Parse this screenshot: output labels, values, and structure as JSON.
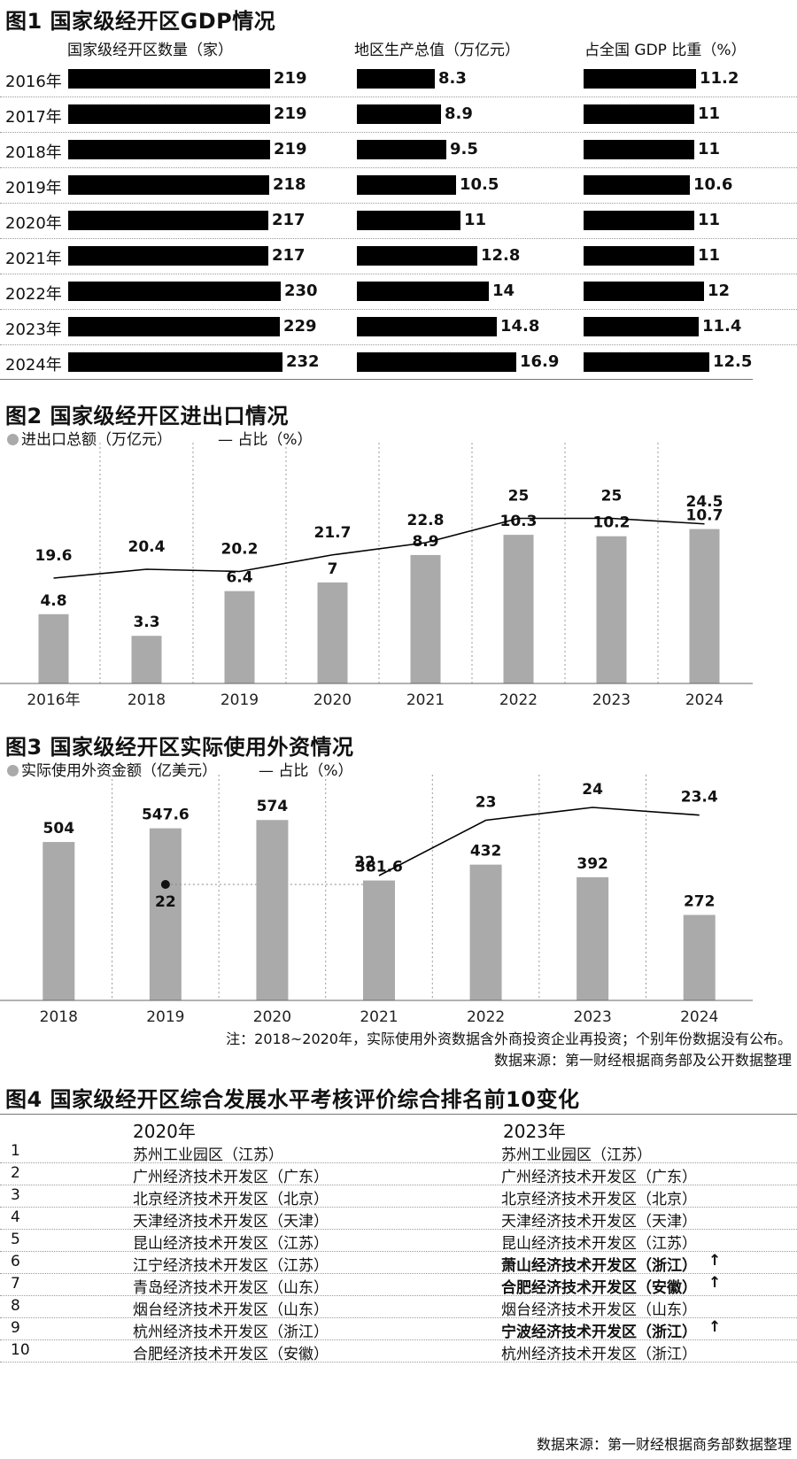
{
  "figures": {
    "fig1_title": "图1 国家级经开区GDP情况",
    "fig2_title": "图2 国家级经开区进出口情况",
    "fig3_title": "图3 国家级经开区实际使用外资情况",
    "fig4_title": "图4 国家级经开区综合发展水平考核评价综合排名前10变化"
  },
  "chart_data": [
    {
      "type": "bar",
      "orientation": "horizontal",
      "categories": [
        "2016年",
        "2017年",
        "2018年",
        "2019年",
        "2020年",
        "2021年",
        "2022年",
        "2023年",
        "2024年"
      ],
      "series": [
        {
          "name": "国家级经开区数量（家）",
          "values": [
            219,
            219,
            219,
            218,
            217,
            217,
            230,
            229,
            232
          ],
          "value_labels": [
            "219",
            "219",
            "219",
            "218",
            "217",
            "217",
            "230",
            "229",
            "232"
          ],
          "color": "#000000"
        },
        {
          "name": "地区生产总值（万亿元）",
          "values": [
            8.3,
            8.9,
            9.5,
            10.5,
            11,
            12.8,
            14,
            14.8,
            16.9
          ],
          "value_labels": [
            "8.3",
            "8.9",
            "9.5",
            "10.5",
            "11",
            "12.8",
            "14",
            "14.8",
            "16.9"
          ],
          "color": "#000000"
        },
        {
          "name": "占全国 GDP 比重（%）",
          "values": [
            11.2,
            11,
            11,
            10.6,
            11,
            11,
            12,
            11.4,
            12.5
          ],
          "value_labels": [
            "11.2",
            "11",
            "11",
            "10.6",
            "11",
            "11",
            "12",
            "11.4",
            "12.5"
          ],
          "color": "#000000"
        }
      ]
    },
    {
      "type": "bar",
      "categories": [
        "2016年",
        "2018",
        "2019",
        "2020",
        "2021",
        "2022",
        "2023",
        "2024"
      ],
      "series": [
        {
          "name": "进出口总额（万亿元）",
          "kind": "bar",
          "values": [
            4.8,
            3.3,
            6.4,
            7,
            8.9,
            10.3,
            10.2,
            10.7
          ],
          "value_labels": [
            "4.8",
            "3.3",
            "6.4",
            "7",
            "8.9",
            "10.3",
            "10.2",
            "10.7"
          ],
          "color": "#aaaaaa"
        },
        {
          "name": "占比（%）",
          "kind": "line",
          "values": [
            19.6,
            20.4,
            20.2,
            21.7,
            22.8,
            25,
            25,
            24.5
          ],
          "value_labels": [
            "19.6",
            "20.4",
            "20.2",
            "21.7",
            "22.8",
            "25",
            "25",
            "24.5"
          ],
          "color": "#000000"
        }
      ],
      "legend_placement": "top-left",
      "grid": "vertical dotted"
    },
    {
      "type": "bar",
      "categories": [
        "2018",
        "2019",
        "2020",
        "2021",
        "2022",
        "2023",
        "2024"
      ],
      "series": [
        {
          "name": "实际使用外资金额（亿美元）",
          "kind": "bar",
          "values": [
            504,
            547.6,
            574,
            381.6,
            432,
            392,
            272
          ],
          "value_labels": [
            "504",
            "547.6",
            "574",
            "381.6",
            "432",
            "392",
            "272"
          ],
          "color": "#aaaaaa"
        },
        {
          "name": "占比（%）",
          "kind": "line",
          "values": [
            null,
            22,
            null,
            22,
            23,
            24,
            23.4
          ],
          "value_labels": [
            "",
            "22",
            "",
            "22",
            "23",
            "24",
            "23.4"
          ],
          "color": "#000000"
        }
      ],
      "legend_placement": "top-left",
      "grid": "vertical dotted"
    },
    {
      "type": "table",
      "columns": [
        "",
        "2020年",
        "2023年"
      ],
      "rows": [
        {
          "rank": "1",
          "y2020": "苏州工业园区（江苏）",
          "y2023": "苏州工业园区（江苏）",
          "rise": false
        },
        {
          "rank": "2",
          "y2020": "广州经济技术开发区（广东）",
          "y2023": "广州经济技术开发区（广东）",
          "rise": false
        },
        {
          "rank": "3",
          "y2020": "北京经济技术开发区（北京）",
          "y2023": "北京经济技术开发区（北京）",
          "rise": false
        },
        {
          "rank": "4",
          "y2020": "天津经济技术开发区（天津）",
          "y2023": "天津经济技术开发区（天津）",
          "rise": false
        },
        {
          "rank": "5",
          "y2020": "昆山经济技术开发区（江苏）",
          "y2023": "昆山经济技术开发区（江苏）",
          "rise": false
        },
        {
          "rank": "6",
          "y2020": "江宁经济技术开发区（江苏）",
          "y2023": "萧山经济技术开发区（浙江）",
          "rise": true
        },
        {
          "rank": "7",
          "y2020": "青岛经济技术开发区（山东）",
          "y2023": "合肥经济技术开发区（安徽）",
          "rise": true
        },
        {
          "rank": "8",
          "y2020": "烟台经济技术开发区（山东）",
          "y2023": "烟台经济技术开发区（山东）",
          "rise": false
        },
        {
          "rank": "9",
          "y2020": "杭州经济技术开发区（浙江）",
          "y2023": "宁波经济技术开发区（浙江）",
          "rise": true
        },
        {
          "rank": "10",
          "y2020": "合肥经济技术开发区（安徽）",
          "y2023": "杭州经济技术开发区（浙江）",
          "rise": false
        }
      ]
    }
  ],
  "notes": {
    "fig3_note": "注：2018~2020年，实际使用外资数据含外商投资企业再投资；个别年份数据没有公布。",
    "fig3_source": "数据来源：第一财经根据商务部及公开数据整理",
    "fig4_source": "数据来源：第一财经根据商务部数据整理"
  },
  "glyphs": {
    "up_arrow": "🠕"
  }
}
